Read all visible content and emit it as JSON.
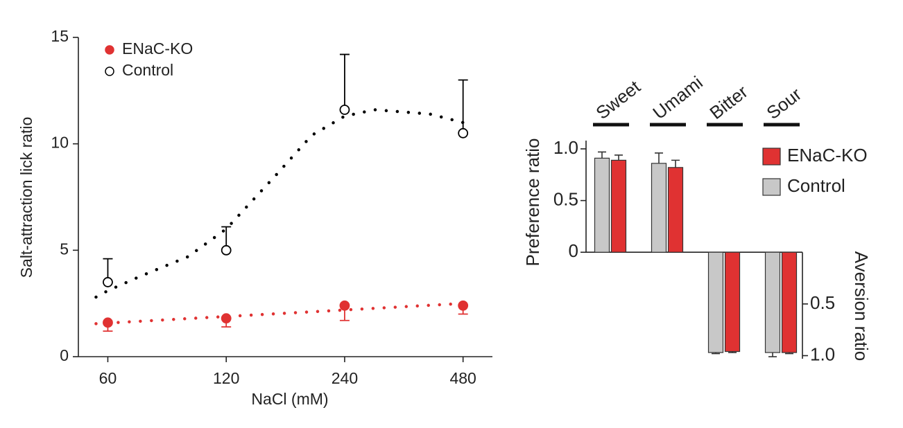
{
  "chart_data": [
    {
      "type": "scatter",
      "x_label": "NaCl (mM)",
      "y_label": "Salt-attraction lick ratio",
      "x": [
        60,
        120,
        240,
        480
      ],
      "xlim": [
        50.5,
        570
      ],
      "xticks": [
        60,
        120,
        240,
        480
      ],
      "xscale": "log",
      "ylim": [
        0,
        15
      ],
      "yticks": [
        0,
        5,
        10,
        15
      ],
      "legend": "upper left",
      "series": [
        {
          "name": "ENaC-KO",
          "color": "#e03232",
          "filled": true,
          "values": [
            1.6,
            1.8,
            2.4,
            2.4
          ],
          "errors": [
            0.4,
            0.4,
            0.7,
            0.4
          ],
          "error_side": "down",
          "fit": {
            "x": [
              56,
              480
            ],
            "values": [
              1.55,
              2.5
            ]
          }
        },
        {
          "name": "Control",
          "color": "#000000",
          "filled": false,
          "values": [
            3.5,
            5.0,
            11.6,
            10.5
          ],
          "errors": [
            1.1,
            1.1,
            2.6,
            2.5
          ],
          "error_side": "up",
          "fit": {
            "x": [
              56,
              60,
              72,
              96,
              120,
              160,
              198,
              240,
              286,
              395,
              480
            ],
            "values": [
              2.8,
              3.1,
              3.75,
              4.7,
              6.0,
              8.5,
              10.4,
              11.3,
              11.6,
              11.4,
              11.0
            ]
          }
        }
      ]
    },
    {
      "type": "bar",
      "y_label": "Preference ratio",
      "y2_label": "Aversion ratio",
      "categories": [
        "Sweet",
        "Umami",
        "Bitter",
        "Sour"
      ],
      "ylim": [
        -1.03,
        1.08
      ],
      "yticks": [
        0,
        0.5,
        {
          "value": 1,
          "label": "1.0"
        }
      ],
      "y2lim": [
        -1.03,
        1.08
      ],
      "y2ticks": [
        {
          "value": -0.5,
          "label": "0.5"
        },
        {
          "value": -1,
          "label": "1.0"
        }
      ],
      "legend": "upper right",
      "series": [
        {
          "name": "Control",
          "color": "#c8c8c8",
          "values": [
            0.91,
            0.86,
            -0.97,
            -0.97
          ],
          "errors": [
            0.06,
            0.1,
            0.01,
            0.04
          ]
        },
        {
          "name": "ENaC-KO",
          "color": "#e03232",
          "values": [
            0.89,
            0.82,
            -0.96,
            -0.97
          ],
          "errors": [
            0.05,
            0.07,
            0.01,
            0.01
          ]
        }
      ]
    }
  ]
}
